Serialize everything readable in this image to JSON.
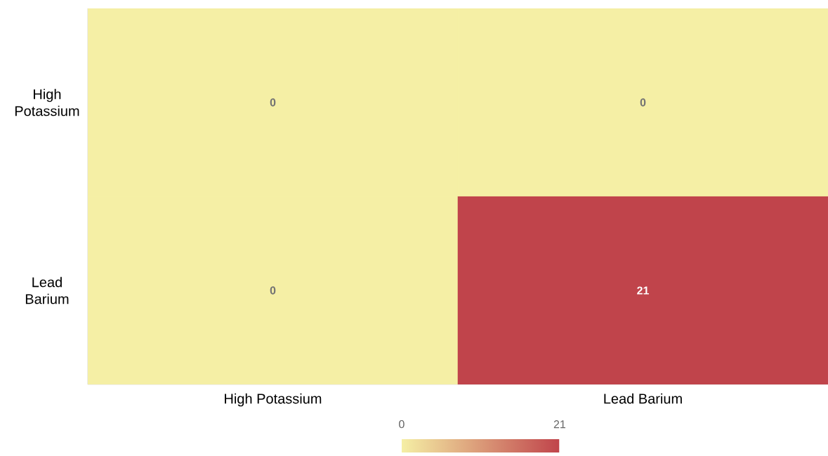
{
  "chart_data": {
    "type": "heatmap",
    "categories": [
      "High Potassium",
      "Lead Barium"
    ],
    "y_categories": [
      "High Potassium",
      "Lead Barium"
    ],
    "cells": [
      [
        0,
        0
      ],
      [
        0,
        21
      ]
    ],
    "clim": [
      0,
      21
    ],
    "cticks": [
      0,
      21
    ],
    "data_labels": true
  }
}
